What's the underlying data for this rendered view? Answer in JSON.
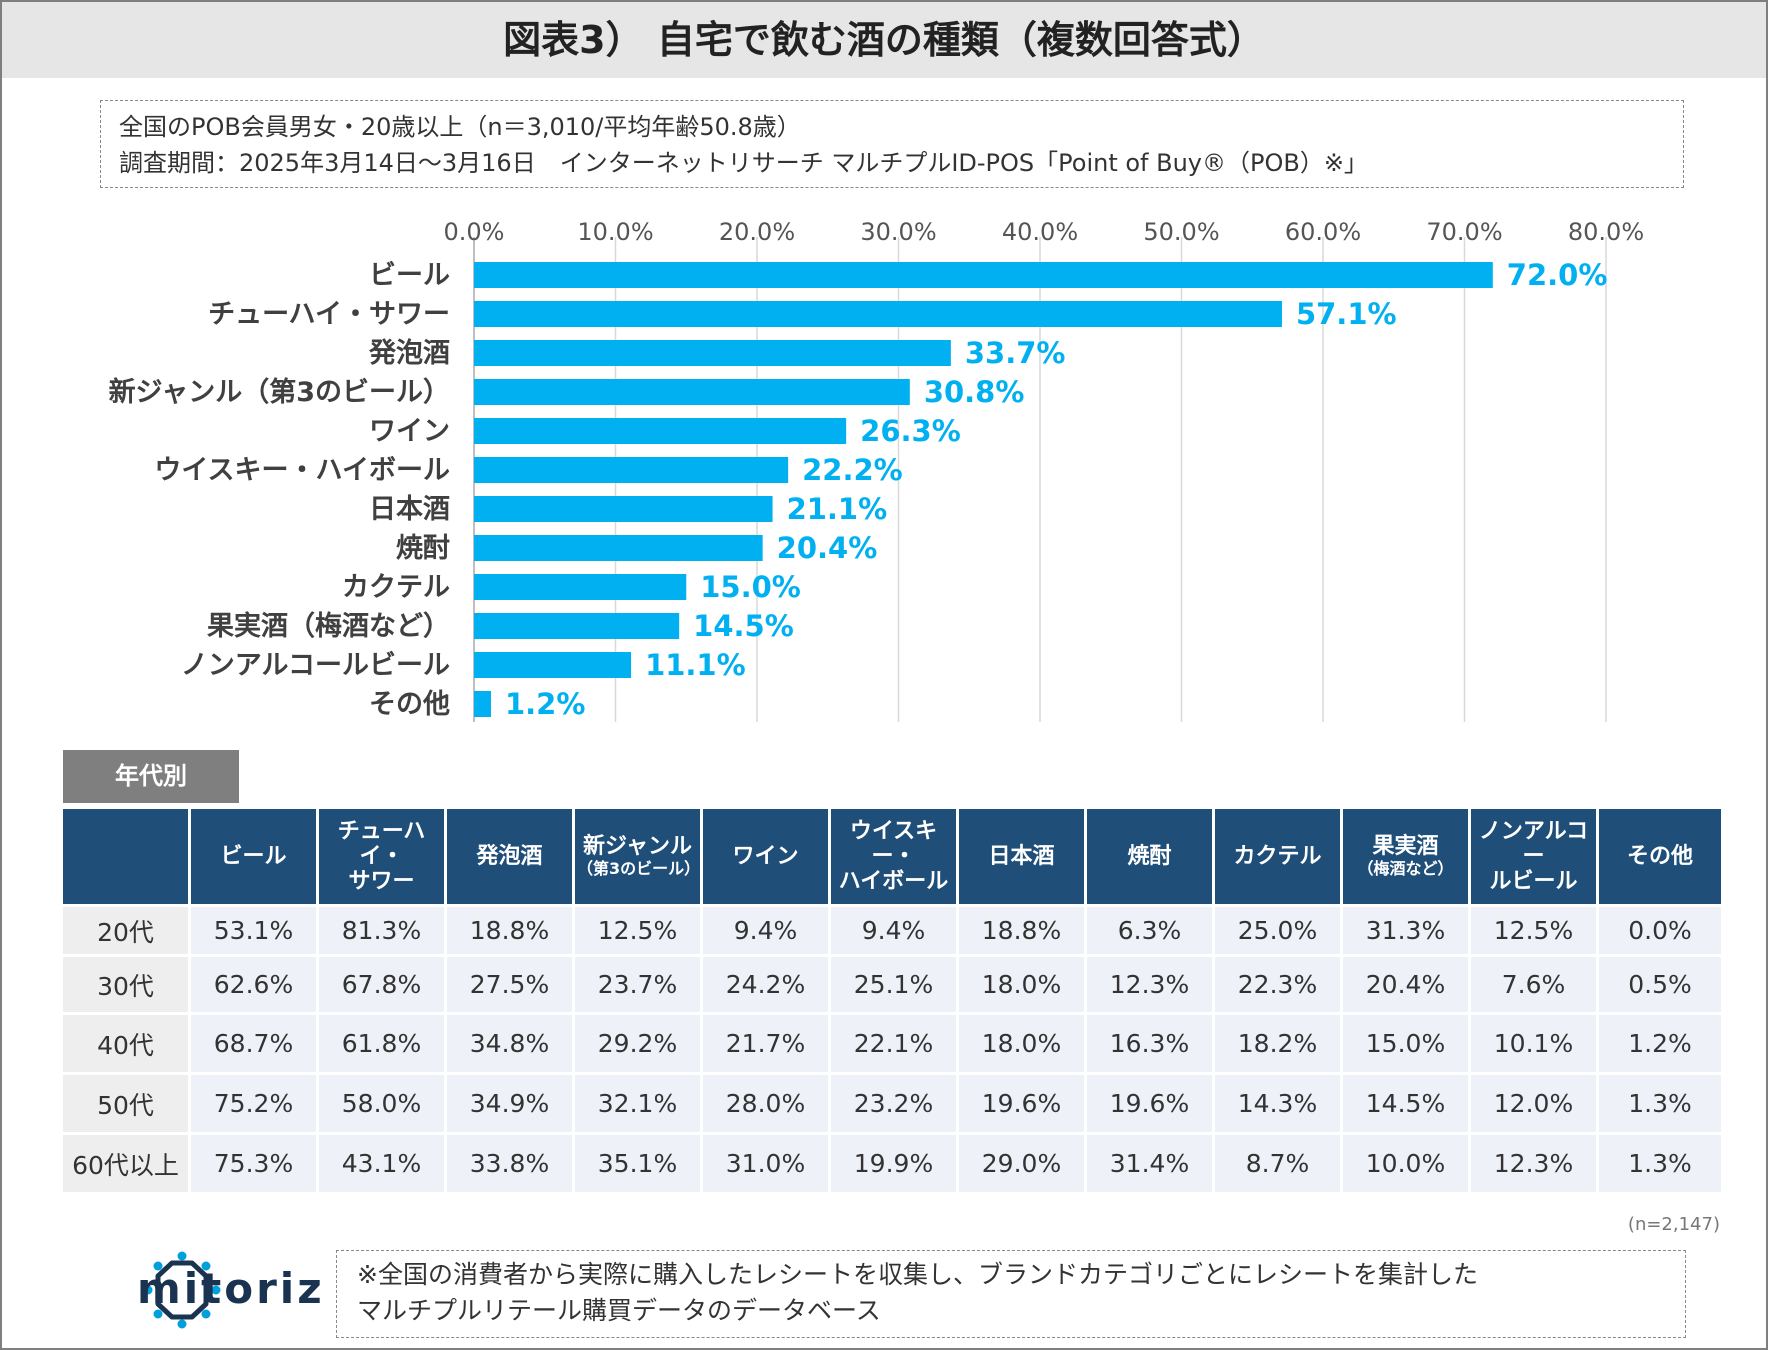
{
  "title": "図表3） 自宅で飲む酒の種類（複数回答式）",
  "survey": {
    "line1": "全国のPOB会員男女・20歳以上（n＝3,010/平均年齢50.8歳）",
    "line2": "調査期間：2025年3月14日～3月16日　インターネットリサーチ マルチプルID-POS「Point of Buy®（POB）※」"
  },
  "chart_data": {
    "type": "bar",
    "orientation": "horizontal",
    "title": "自宅で飲む酒の種類（複数回答式）",
    "categories": [
      "ビール",
      "チューハイ・サワー",
      "発泡酒",
      "新ジャンル（第3のビール）",
      "ワイン",
      "ウイスキー・ハイボール",
      "日本酒",
      "焼酎",
      "カクテル",
      "果実酒（梅酒など）",
      "ノンアルコールビール",
      "その他"
    ],
    "values": [
      72.0,
      57.1,
      33.7,
      30.8,
      26.3,
      22.2,
      21.1,
      20.4,
      15.0,
      14.5,
      11.1,
      1.2
    ],
    "value_labels": [
      "72.0%",
      "57.1%",
      "33.7%",
      "30.8%",
      "26.3%",
      "22.2%",
      "21.1%",
      "20.4%",
      "15.0%",
      "14.5%",
      "11.1%",
      "1.2%"
    ],
    "xlim": [
      0,
      80
    ],
    "ticks": [
      0,
      10,
      20,
      30,
      40,
      50,
      60,
      70,
      80
    ],
    "tick_labels": [
      "0.0%",
      "10.0%",
      "20.0%",
      "30.0%",
      "40.0%",
      "50.0%",
      "60.0%",
      "70.0%",
      "80.0%"
    ],
    "axis_position": "top",
    "grid": true,
    "bar_color": "#00b0f0",
    "label_color": "#00b0f0"
  },
  "age_table": {
    "tab_label": "年代別",
    "headers": [
      {
        "line1": "",
        "line2": ""
      },
      {
        "line1": "ビール",
        "line2": ""
      },
      {
        "line1": "チューハイ・",
        "line2": "サワー"
      },
      {
        "line1": "発泡酒",
        "line2": ""
      },
      {
        "line1": "新ジャンル",
        "line2": "（第3のビール）"
      },
      {
        "line1": "ワイン",
        "line2": ""
      },
      {
        "line1": "ウイスキー・",
        "line2": "ハイボール"
      },
      {
        "line1": "日本酒",
        "line2": ""
      },
      {
        "line1": "焼酎",
        "line2": ""
      },
      {
        "line1": "カクテル",
        "line2": ""
      },
      {
        "line1": "果実酒",
        "line2": "（梅酒など）"
      },
      {
        "line1": "ノンアルコー",
        "line2": "ルビール"
      },
      {
        "line1": "その他",
        "line2": ""
      }
    ],
    "rows": [
      {
        "label": "20代",
        "values": [
          "53.1%",
          "81.3%",
          "18.8%",
          "12.5%",
          "9.4%",
          "9.4%",
          "18.8%",
          "6.3%",
          "25.0%",
          "31.3%",
          "12.5%",
          "0.0%"
        ]
      },
      {
        "label": "30代",
        "values": [
          "62.6%",
          "67.8%",
          "27.5%",
          "23.7%",
          "24.2%",
          "25.1%",
          "18.0%",
          "12.3%",
          "22.3%",
          "20.4%",
          "7.6%",
          "0.5%"
        ]
      },
      {
        "label": "40代",
        "values": [
          "68.7%",
          "61.8%",
          "34.8%",
          "29.2%",
          "21.7%",
          "22.1%",
          "18.0%",
          "16.3%",
          "18.2%",
          "15.0%",
          "10.1%",
          "1.2%"
        ]
      },
      {
        "label": "50代",
        "values": [
          "75.2%",
          "58.0%",
          "34.9%",
          "32.1%",
          "28.0%",
          "23.2%",
          "19.6%",
          "19.6%",
          "14.3%",
          "14.5%",
          "12.0%",
          "1.3%"
        ]
      },
      {
        "label": "60代以上",
        "values": [
          "75.3%",
          "43.1%",
          "33.8%",
          "35.1%",
          "31.0%",
          "19.9%",
          "29.0%",
          "31.4%",
          "8.7%",
          "10.0%",
          "12.3%",
          "1.3%"
        ]
      }
    ],
    "n_note": "(n=2,147)",
    "header_color": "#1f4e79"
  },
  "brand": {
    "logo_text": "mitoriz"
  },
  "footnote": {
    "line1": "※全国の消費者から実際に購入したレシートを収集し、ブランドカテゴリごとにレシートを集計した",
    "line2": "マルチプルリテール購買データのデータベース"
  }
}
